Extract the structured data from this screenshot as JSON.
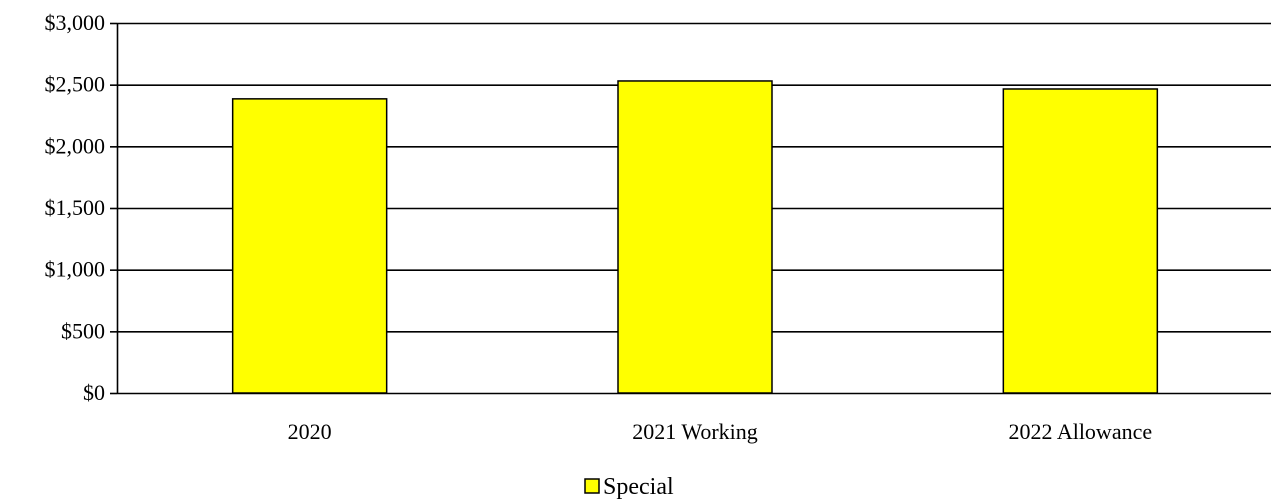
{
  "chart_data": {
    "type": "bar",
    "categories": [
      "2020",
      "2021 Working",
      "2022 Allowance"
    ],
    "series": [
      {
        "name": "Special",
        "values": [
          2385,
          2530,
          2465
        ],
        "color": "#FFFF00"
      }
    ],
    "ylim": [
      0,
      3000
    ],
    "yticks": [
      0,
      500,
      1000,
      1500,
      2000,
      2500,
      3000
    ],
    "ytick_labels": [
      "$0",
      "$500",
      "$1,000",
      "$1,500",
      "$2,000",
      "$2,500",
      "$3,000"
    ],
    "grid": true,
    "legend_position": "bottom-center",
    "bar_outline_color": "#000000"
  }
}
